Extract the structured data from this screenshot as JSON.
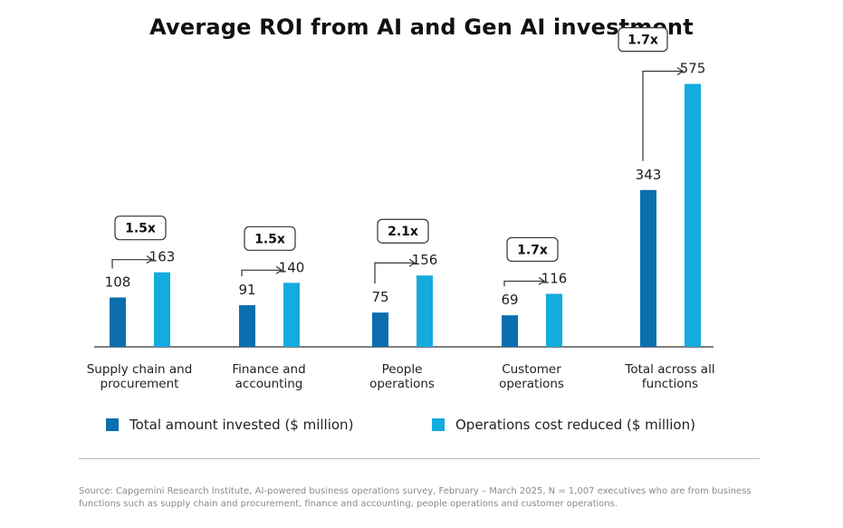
{
  "chart_data": {
    "type": "bar",
    "title": "Average ROI from AI and Gen AI investment",
    "categories": [
      [
        "Supply chain and",
        "procurement"
      ],
      [
        "Finance and",
        "accounting"
      ],
      [
        "People",
        "operations"
      ],
      [
        "Customer",
        "operations"
      ],
      [
        "Total across all",
        "functions"
      ]
    ],
    "series": [
      {
        "name": "Total amount invested ($ million)",
        "color": "#0a6eaf",
        "values": [
          108,
          91,
          75,
          69,
          343
        ]
      },
      {
        "name": "Operations cost reduced ($ million)",
        "color": "#14abdf",
        "values": [
          163,
          140,
          156,
          116,
          575
        ]
      }
    ],
    "multipliers": [
      "1.5x",
      "1.5x",
      "2.1x",
      "1.7x",
      "1.7x"
    ],
    "ylim": [
      0,
      600
    ],
    "xlabel": "",
    "ylabel": ""
  },
  "source": "Source: Capgemini Research Institute, AI-powered business operations survey, February – March 2025, N = 1,007 executives who are from business functions such as supply chain and procurement, finance and accounting, people operations and customer operations."
}
